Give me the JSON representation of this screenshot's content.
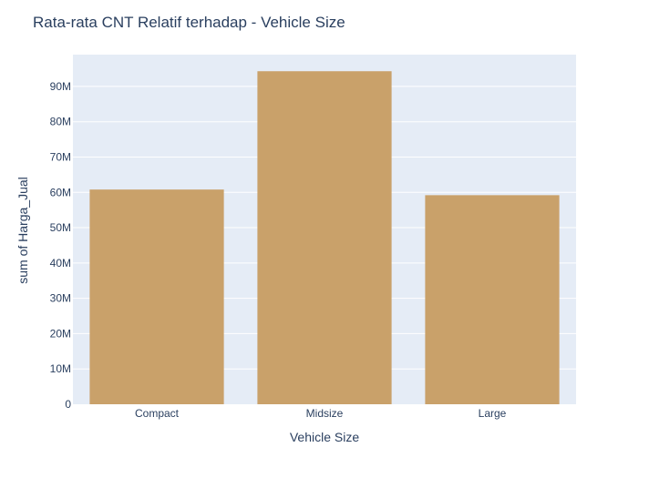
{
  "chart_data": {
    "type": "bar",
    "title": "Rata-rata CNT Relatif terhadap - Vehicle Size",
    "xlabel": "Vehicle Size",
    "ylabel": "sum of Harga_Jual",
    "categories": [
      "Compact",
      "Midsize",
      "Large"
    ],
    "values": [
      60800000,
      94300000,
      59200000
    ],
    "ylim": [
      0,
      99000000
    ],
    "yticks": [
      0,
      10000000,
      20000000,
      30000000,
      40000000,
      50000000,
      60000000,
      70000000,
      80000000,
      90000000
    ],
    "ytick_labels": [
      "0",
      "10M",
      "20M",
      "30M",
      "40M",
      "50M",
      "60M",
      "70M",
      "80M",
      "90M"
    ],
    "grid": true,
    "legend": "none",
    "colors": {
      "bar": "#c9a16a",
      "plot_background": "#e5ecf6",
      "gridline": "#ffffff",
      "text": "#2a3f5f"
    }
  }
}
